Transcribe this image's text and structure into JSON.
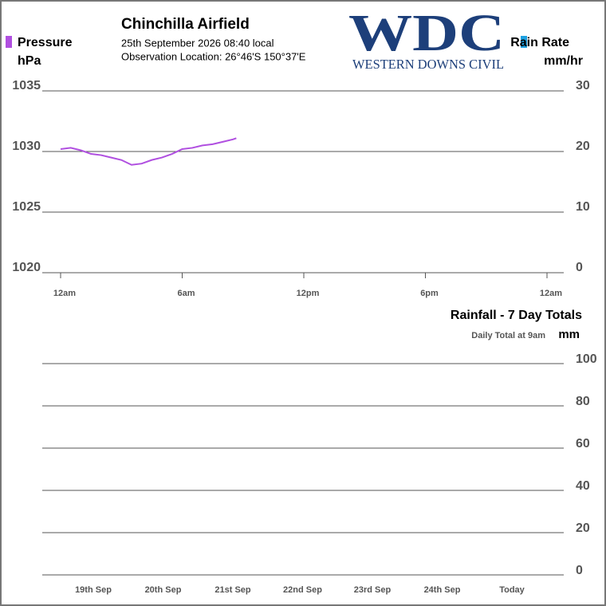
{
  "logo": {
    "text": "WDC",
    "subtitle": "WESTERN DOWNS CIVIL"
  },
  "chart_data": [
    {
      "type": "line",
      "title": "Chinchilla Airfield",
      "subtitle": [
        "25th September 2026  08:40 local",
        "Observation Location:  26°46'S 150°37'E"
      ],
      "x": [
        0,
        0.5,
        1,
        1.5,
        2,
        2.5,
        3,
        3.5,
        4,
        4.5,
        5,
        5.5,
        6,
        6.5,
        7,
        7.5,
        8,
        8.5,
        8.67
      ],
      "xlim": [
        0,
        24
      ],
      "xticks": [
        {
          "value": 0,
          "label": "12am"
        },
        {
          "value": 6,
          "label": "6am"
        },
        {
          "value": 12,
          "label": "12pm"
        },
        {
          "value": 18,
          "label": "6pm"
        },
        {
          "value": 24,
          "label": "12am"
        }
      ],
      "series": [
        {
          "name": "Pressure",
          "unit": "hPa",
          "color": "#b04fe0",
          "values": [
            1030.2,
            1030.3,
            1030.1,
            1029.8,
            1029.7,
            1029.5,
            1029.3,
            1028.9,
            1029.0,
            1029.3,
            1029.5,
            1029.8,
            1030.2,
            1030.3,
            1030.5,
            1030.6,
            1030.8,
            1031.0,
            1031.1
          ]
        },
        {
          "name": "Rain Rate",
          "unit": "mm/hr",
          "color": "#1ea0e0",
          "axis": "y2",
          "values": [
            null,
            null,
            null,
            null,
            null,
            null,
            null,
            null,
            null,
            null,
            null,
            null,
            null,
            null,
            null,
            null,
            null,
            null,
            null
          ]
        }
      ],
      "ylim": [
        1020,
        1035
      ],
      "yticks": [
        1020,
        1025,
        1030,
        1035
      ],
      "y2lim": [
        0,
        30
      ],
      "y2ticks": [
        0,
        10,
        20,
        30
      ],
      "grid": true
    },
    {
      "type": "bar",
      "title": "Rainfall - 7 Day Totals",
      "subtitle": "Daily Total at 9am",
      "ylabel": "mm",
      "categories": [
        "19th Sep",
        "20th Sep",
        "21st Sep",
        "22nd Sep",
        "23rd Sep",
        "24th Sep",
        "Today"
      ],
      "values": [
        0,
        0,
        0,
        0,
        0,
        0,
        0
      ],
      "color": "#1ea0e0",
      "ylim": [
        0,
        100
      ],
      "yticks": [
        0,
        20,
        40,
        60,
        80,
        100
      ],
      "grid": true
    }
  ]
}
